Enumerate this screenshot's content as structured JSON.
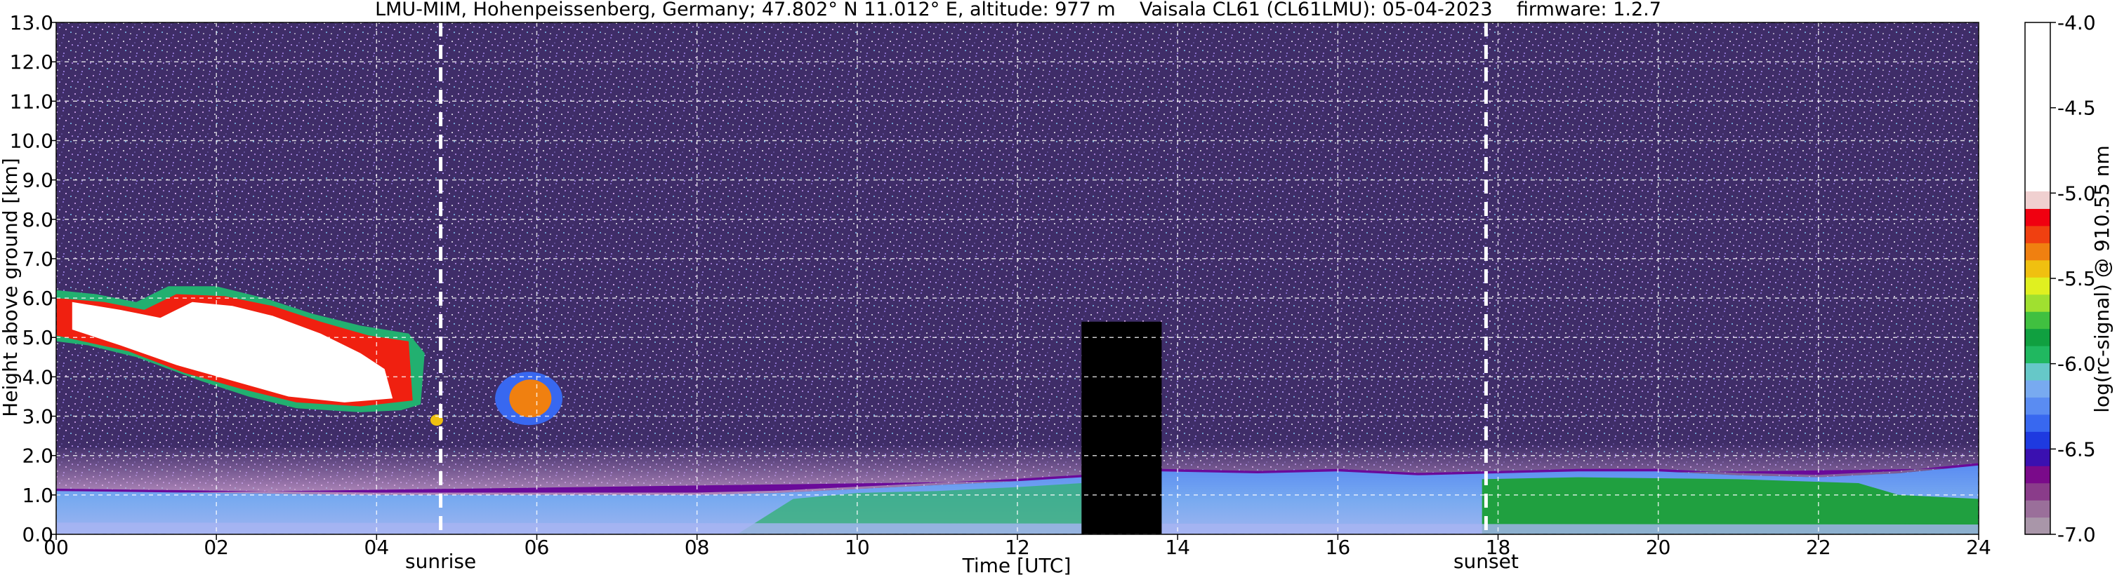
{
  "chart_data": {
    "type": "heatmap",
    "title": "LMU-MIM, Hohenpeissenberg, Germany; 47.802° N 11.012° E, altitude: 977 m    Vaisala CL61 (CL61LMU): 05-04-2023    firmware: 1.2.7",
    "xlabel": "Time [UTC]",
    "ylabel": "Height above ground [km]",
    "xlim": [
      0,
      24
    ],
    "ylim": [
      0,
      13
    ],
    "x_ticks": [
      "00",
      "02",
      "04",
      "06",
      "08",
      "10",
      "12",
      "14",
      "16",
      "18",
      "20",
      "22",
      "24"
    ],
    "y_ticks": [
      "0.0",
      "1.0",
      "2.0",
      "3.0",
      "4.0",
      "5.0",
      "6.0",
      "7.0",
      "8.0",
      "9.0",
      "10.0",
      "11.0",
      "12.0",
      "13.0"
    ],
    "grid": true,
    "events": [
      {
        "label": "sunrise",
        "x": 4.8
      },
      {
        "label": "sunset",
        "x": 17.85
      }
    ],
    "colorbar": {
      "label": "log(rc-signal) @ 910.55 nm",
      "range": [
        -7.0,
        -4.0
      ],
      "ticks": [
        "-7.0",
        "-6.5",
        "-6.0",
        "-5.5",
        "-5.0",
        "-4.5",
        "-4.0"
      ],
      "colors": [
        "#a996a9",
        "#9a6f9a",
        "#8a3c8a",
        "#7a0a8a",
        "#3a10b0",
        "#1e3ae0",
        "#3868f0",
        "#5a8cf2",
        "#78aaf0",
        "#66c8c8",
        "#20b860",
        "#10a040",
        "#40c040",
        "#a0e030",
        "#e0f020",
        "#f0c010",
        "#f08010",
        "#f04010",
        "#f00010",
        "#f0d0d0",
        "#ffffff"
      ]
    },
    "features": [
      {
        "name": "high cloud",
        "x": [
          0,
          4.6
        ],
        "height_km": [
          3.0,
          6.3
        ]
      },
      {
        "name": "cloud patch",
        "x": [
          5.5,
          6.3
        ],
        "height_km": [
          2.9,
          4.1
        ]
      },
      {
        "name": "boundary layer",
        "x": [
          0,
          24
        ],
        "height_km": [
          0,
          1.7
        ]
      },
      {
        "name": "data gap",
        "x": [
          12.8,
          13.8
        ],
        "height_km": [
          0,
          6.0
        ]
      }
    ]
  }
}
